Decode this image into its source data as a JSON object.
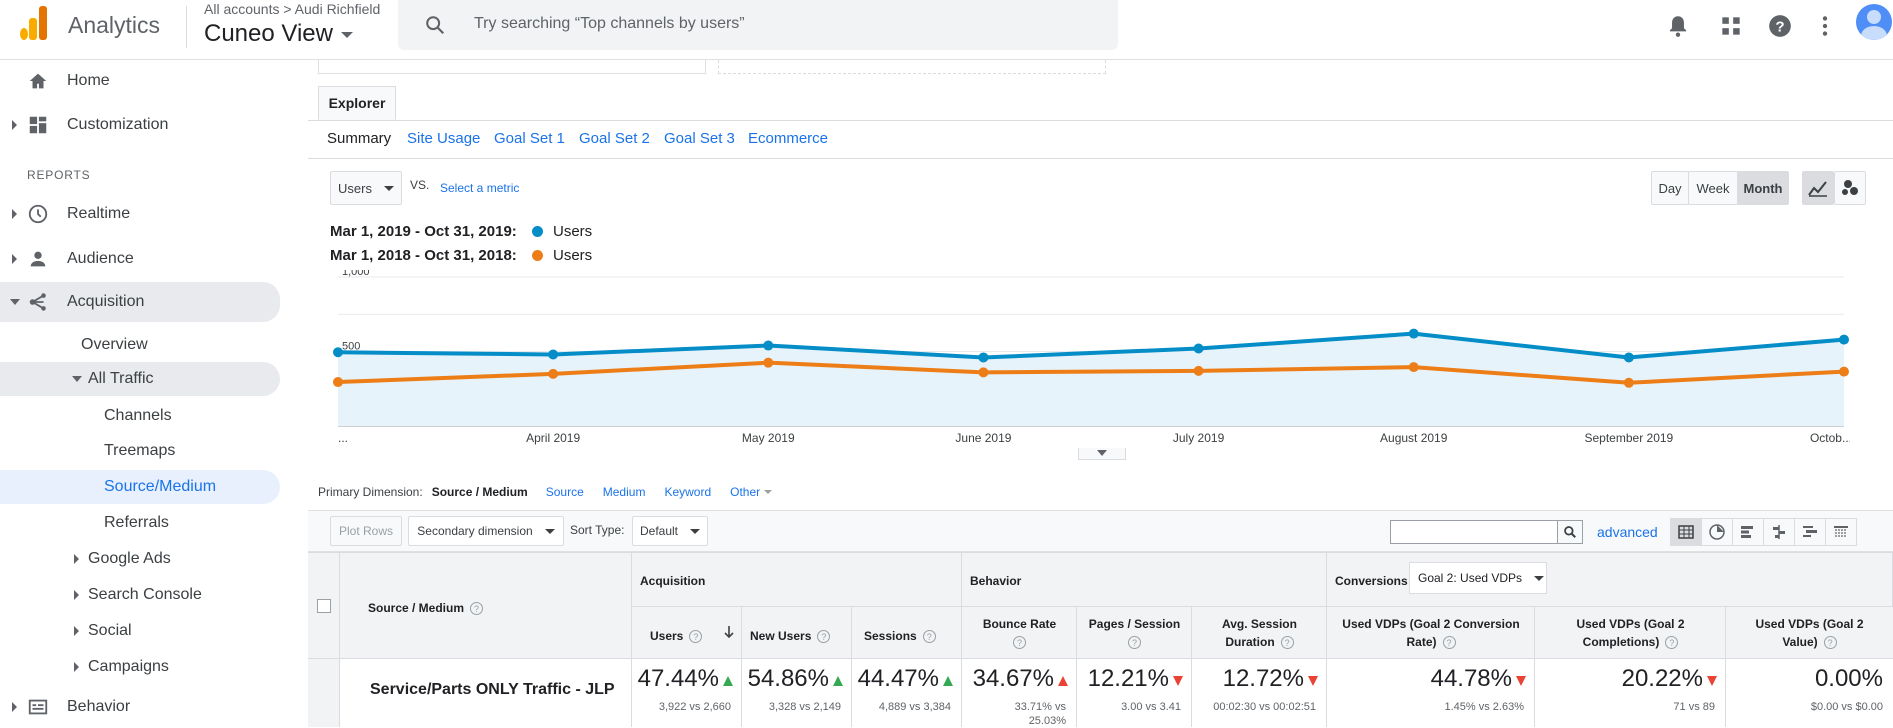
{
  "topbar": {
    "app_title": "Analytics",
    "account_path": "All accounts > Audi Richfield",
    "view_name": "Cuneo View",
    "search_placeholder": "Try searching “Top channels by users”"
  },
  "sidebar": {
    "home": "Home",
    "customization": "Customization",
    "reports_header": "REPORTS",
    "realtime": "Realtime",
    "audience": "Audience",
    "acquisition": "Acquisition",
    "overview": "Overview",
    "all_traffic": "All Traffic",
    "channels": "Channels",
    "treemaps": "Treemaps",
    "source_medium": "Source/Medium",
    "referrals": "Referrals",
    "google_ads": "Google Ads",
    "search_console": "Search Console",
    "social": "Social",
    "campaigns": "Campaigns",
    "behavior": "Behavior"
  },
  "explorer": {
    "tab": "Explorer",
    "subtabs": [
      "Summary",
      "Site Usage",
      "Goal Set 1",
      "Goal Set 2",
      "Goal Set 3",
      "Ecommerce"
    ],
    "metric_select": "Users",
    "vs": "VS.",
    "select_metric": "Select a metric",
    "time_buttons": [
      "Day",
      "Week",
      "Month"
    ],
    "active_time": "Month"
  },
  "legend": [
    {
      "date": "Mar 1, 2019 - Oct 31, 2019:",
      "series": "Users",
      "color": "#058dc7"
    },
    {
      "date": "Mar 1, 2018 - Oct 31, 2018:",
      "series": "Users",
      "color": "#ed7e17"
    }
  ],
  "chart_data": {
    "type": "line",
    "x": [
      "...",
      "April 2019",
      "May 2019",
      "June 2019",
      "July 2019",
      "August 2019",
      "September 2019",
      "Octob..."
    ],
    "y_ticks": [
      "1,000",
      "500"
    ],
    "ylim": [
      0,
      1000
    ],
    "grid": true,
    "legend_position": "top-left",
    "series": [
      {
        "name": "Users",
        "color": "#058dc7",
        "values": [
          495,
          480,
          540,
          460,
          520,
          620,
          460,
          580
        ]
      },
      {
        "name": "Users",
        "color": "#ed7e17",
        "values": [
          295,
          350,
          425,
          360,
          370,
          395,
          290,
          365
        ]
      }
    ]
  },
  "dimensions": {
    "label": "Primary Dimension:",
    "current": "Source / Medium",
    "options": [
      "Source",
      "Medium",
      "Keyword",
      "Other"
    ]
  },
  "toolbar": {
    "plot_rows": "Plot Rows",
    "secondary_dimension": "Secondary dimension",
    "sort_type_label": "Sort Type:",
    "sort_type_value": "Default",
    "advanced": "advanced"
  },
  "table": {
    "col_dimension": "Source / Medium",
    "group_acquisition": "Acquisition",
    "group_behavior": "Behavior",
    "group_conversions": "Conversions",
    "goal_select": "Goal 2: Used VDPs",
    "columns": {
      "users": "Users",
      "new_users": "New Users",
      "sessions": "Sessions",
      "bounce_rate": "Bounce Rate",
      "pages_session": "Pages / Session",
      "avg_session_1": "Avg. Session",
      "avg_session_2": "Duration",
      "conv_rate_1": "Used VDPs (Goal 2 Conversion",
      "conv_rate_2": "Rate)",
      "completions_1": "Used VDPs (Goal 2",
      "completions_2": "Completions)",
      "value_1": "Used VDPs (Goal 2",
      "value_2": "Value)"
    },
    "row": {
      "name": "Service/Parts ONLY Traffic - JLP",
      "users": {
        "pct": "47.44%",
        "sub": "3,922 vs 2,660",
        "dir": "up"
      },
      "new_users": {
        "pct": "54.86%",
        "sub": "3,328 vs 2,149",
        "dir": "up"
      },
      "sessions": {
        "pct": "44.47%",
        "sub": "4,889 vs 3,384",
        "dir": "up"
      },
      "bounce_rate": {
        "pct": "34.67%",
        "sub1": "33.71% vs",
        "sub2": "25.03%",
        "dir": "up-red"
      },
      "pages_session": {
        "pct": "12.21%",
        "sub": "3.00 vs 3.41",
        "dir": "down"
      },
      "avg_session": {
        "pct": "12.72%",
        "sub": "00:02:30 vs 00:02:51",
        "dir": "down"
      },
      "conv_rate": {
        "pct": "44.78%",
        "sub": "1.45% vs 2.63%",
        "dir": "down"
      },
      "completions": {
        "pct": "20.22%",
        "sub": "71 vs 89",
        "dir": "down"
      },
      "value": {
        "pct": "0.00%",
        "sub": "$0.00 vs $0.00",
        "dir": "none"
      }
    }
  }
}
